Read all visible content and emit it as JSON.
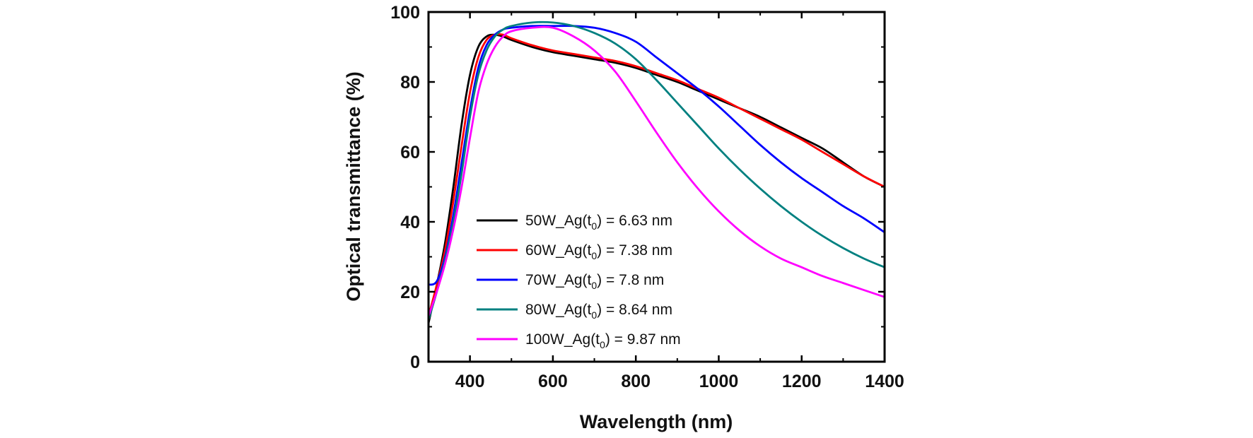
{
  "chart_data": {
    "type": "line",
    "title": "",
    "xlabel": "Wavelength (nm)",
    "ylabel": "Optical transmittance (%)",
    "xlim": [
      300,
      1400
    ],
    "ylim": [
      0,
      100
    ],
    "xticks": [
      400,
      600,
      800,
      1000,
      1200,
      1400
    ],
    "yticks": [
      0,
      20,
      40,
      60,
      80,
      100
    ],
    "grid": false,
    "legend_position": "bottom-left",
    "series": [
      {
        "name": "50W_Ag(t0) = 6.63 nm",
        "label_prefix": "50W_Ag(t",
        "label_sub": "0",
        "label_suffix": ") = 6.63 nm",
        "color": "#000000",
        "x": [
          300,
          320,
          340,
          360,
          380,
          400,
          420,
          440,
          460,
          480,
          500,
          550,
          600,
          650,
          700,
          750,
          800,
          850,
          900,
          950,
          1000,
          1050,
          1100,
          1150,
          1200,
          1250,
          1300,
          1350,
          1400
        ],
        "y": [
          11,
          22,
          34,
          50,
          68,
          82,
          90,
          93,
          93.5,
          93,
          92,
          90,
          88.5,
          87.5,
          86.5,
          85.5,
          84,
          82,
          80,
          77.5,
          75,
          72.5,
          70,
          67,
          64,
          61,
          57,
          53,
          50
        ]
      },
      {
        "name": "60W_Ag(t0) = 7.38 nm",
        "label_prefix": "60W_Ag(t",
        "label_sub": "0",
        "label_suffix": ") = 7.38 nm",
        "color": "#ff0000",
        "x": [
          300,
          320,
          340,
          360,
          380,
          400,
          420,
          440,
          460,
          480,
          500,
          550,
          600,
          650,
          700,
          750,
          800,
          850,
          900,
          950,
          1000,
          1050,
          1100,
          1150,
          1200,
          1250,
          1300,
          1350,
          1400
        ],
        "y": [
          13,
          22,
          32,
          46,
          62,
          77,
          87,
          92,
          93.5,
          93.5,
          92.5,
          90.5,
          89,
          88,
          87,
          86,
          84.5,
          82.5,
          80.5,
          78,
          75.5,
          72.5,
          69.5,
          66.5,
          63.5,
          60,
          56.5,
          53,
          50
        ]
      },
      {
        "name": "70W_Ag(t0) = 7.8 nm",
        "label_prefix": "70W_Ag(t",
        "label_sub": "0",
        "label_suffix": ") = 7.8 nm",
        "color": "#0000ff",
        "x": [
          300,
          320,
          340,
          360,
          380,
          400,
          420,
          440,
          460,
          480,
          500,
          550,
          600,
          650,
          700,
          750,
          800,
          850,
          900,
          950,
          1000,
          1050,
          1100,
          1150,
          1200,
          1250,
          1300,
          1350,
          1400
        ],
        "y": [
          22,
          23,
          30,
          42,
          57,
          72,
          84,
          90.5,
          93.5,
          95,
          95.5,
          96,
          96,
          96,
          95.5,
          94,
          91.5,
          87,
          82.5,
          78,
          73,
          67.5,
          62,
          57,
          52.5,
          48.5,
          44.5,
          41,
          37
        ]
      },
      {
        "name": "80W_Ag(t0) = 8.64 nm",
        "label_prefix": "80W_Ag(t",
        "label_sub": "0",
        "label_suffix": ") = 8.64 nm",
        "color": "#008080",
        "x": [
          300,
          320,
          340,
          360,
          380,
          400,
          420,
          440,
          460,
          480,
          500,
          550,
          600,
          650,
          700,
          750,
          800,
          850,
          900,
          950,
          1000,
          1050,
          1100,
          1150,
          1200,
          1250,
          1300,
          1350,
          1400
        ],
        "y": [
          12,
          20,
          29,
          40,
          54,
          70,
          82,
          89,
          93,
          95,
          96,
          97,
          97,
          96,
          94,
          91,
          86.5,
          80.5,
          74,
          67.5,
          61,
          55,
          49.5,
          44.5,
          40,
          36,
          32.5,
          29.5,
          27
        ]
      },
      {
        "name": "100W_Ag(t0) = 9.87 nm",
        "label_prefix": "100W_Ag(t",
        "label_sub": "0",
        "label_suffix": ") = 9.87 nm",
        "color": "#ff00ff",
        "x": [
          300,
          320,
          340,
          360,
          380,
          400,
          420,
          440,
          460,
          480,
          500,
          550,
          600,
          650,
          700,
          750,
          800,
          850,
          900,
          950,
          1000,
          1050,
          1100,
          1150,
          1200,
          1250,
          1300,
          1350,
          1400
        ],
        "y": [
          13,
          20,
          28,
          38,
          50,
          64,
          77,
          85,
          90,
          93,
          94.5,
          95.5,
          95.5,
          93,
          89,
          83,
          74.5,
          65.5,
          57,
          49.5,
          43,
          37.5,
          33,
          29.5,
          27,
          24.5,
          22.5,
          20.5,
          18.5
        ]
      }
    ]
  }
}
